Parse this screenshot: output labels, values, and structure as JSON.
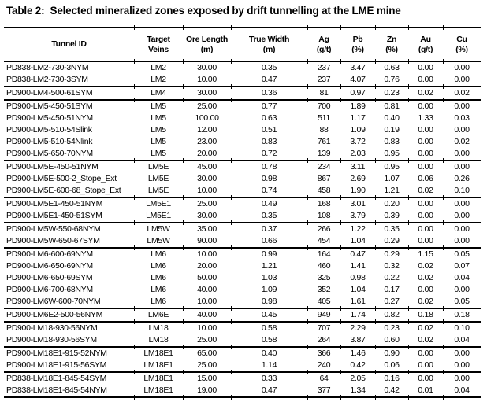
{
  "title": "Table 2:  Selected mineralized zones exposed by drift tunnelling at the LME mine",
  "colors": {
    "background": "#ffffff",
    "text": "#000000",
    "rule": "#000000"
  },
  "table": {
    "columns": [
      {
        "label": "Tunnel ID",
        "sub": ""
      },
      {
        "label": "Target",
        "sub": "Veins"
      },
      {
        "label": "Ore Length",
        "sub": "(m)"
      },
      {
        "label": "True Width",
        "sub": "(m)"
      },
      {
        "label": "Ag",
        "sub": "(g/t)"
      },
      {
        "label": "Pb",
        "sub": "(%)"
      },
      {
        "label": "Zn",
        "sub": "(%)"
      },
      {
        "label": "Au",
        "sub": "(g/t)"
      },
      {
        "label": "Cu",
        "sub": "(%)"
      }
    ],
    "groups": [
      {
        "rows": [
          [
            "PD838-LM2-730-3NYM",
            "LM2",
            "30.00",
            "0.35",
            "237",
            "3.47",
            "0.63",
            "0.00",
            "0.00"
          ],
          [
            "PD838-LM2-730-3SYM",
            "LM2",
            "10.00",
            "0.47",
            "237",
            "4.07",
            "0.76",
            "0.00",
            "0.00"
          ]
        ]
      },
      {
        "rows": [
          [
            "PD900-LM4-500-61SYM",
            "LM4",
            "30.00",
            "0.36",
            "81",
            "0.97",
            "0.23",
            "0.02",
            "0.02"
          ]
        ]
      },
      {
        "rows": [
          [
            "PD900-LM5-450-51SYM",
            "LM5",
            "25.00",
            "0.77",
            "700",
            "1.89",
            "0.81",
            "0.00",
            "0.00"
          ],
          [
            "PD900-LM5-450-51NYM",
            "LM5",
            "100.00",
            "0.63",
            "511",
            "1.17",
            "0.40",
            "1.33",
            "0.03"
          ],
          [
            "PD900-LM5-510-54Slink",
            "LM5",
            "12.00",
            "0.51",
            "88",
            "1.09",
            "0.19",
            "0.00",
            "0.00"
          ],
          [
            "PD900-LM5-510-54Nlink",
            "LM5",
            "23.00",
            "0.83",
            "761",
            "3.72",
            "0.83",
            "0.00",
            "0.02"
          ],
          [
            "PD900-LM5-650-70NYM",
            "LM5",
            "20.00",
            "0.72",
            "139",
            "2.03",
            "0.95",
            "0.00",
            "0.00"
          ]
        ]
      },
      {
        "rows": [
          [
            "PD900-LM5E-450-51NYM",
            "LM5E",
            "45.00",
            "0.78",
            "234",
            "3.11",
            "0.95",
            "0.00",
            "0.00"
          ],
          [
            "PD900-LM5E-500-2_Stope_Ext",
            "LM5E",
            "30.00",
            "0.98",
            "867",
            "2.69",
            "1.07",
            "0.06",
            "0.26"
          ],
          [
            "PD900-LM5E-600-68_Stope_Ext",
            "LM5E",
            "10.00",
            "0.74",
            "458",
            "1.90",
            "1.21",
            "0.02",
            "0.10"
          ]
        ]
      },
      {
        "rows": [
          [
            "PD900-LM5E1-450-51NYM",
            "LM5E1",
            "25.00",
            "0.49",
            "168",
            "3.01",
            "0.20",
            "0.00",
            "0.00"
          ],
          [
            "PD900-LM5E1-450-51SYM",
            "LM5E1",
            "30.00",
            "0.35",
            "108",
            "3.79",
            "0.39",
            "0.00",
            "0.00"
          ]
        ]
      },
      {
        "rows": [
          [
            "PD900-LM5W-550-68NYM",
            "LM5W",
            "35.00",
            "0.37",
            "266",
            "1.22",
            "0.35",
            "0.00",
            "0.00"
          ],
          [
            "PD900-LM5W-650-67SYM",
            "LM5W",
            "90.00",
            "0.66",
            "454",
            "1.04",
            "0.29",
            "0.00",
            "0.00"
          ]
        ]
      },
      {
        "rows": [
          [
            "PD900-LM6-600-69NYM",
            "LM6",
            "10.00",
            "0.99",
            "164",
            "0.47",
            "0.29",
            "1.15",
            "0.05"
          ],
          [
            "PD900-LM6-650-69NYM",
            "LM6",
            "20.00",
            "1.21",
            "460",
            "1.41",
            "0.32",
            "0.02",
            "0.07"
          ],
          [
            "PD900-LM6-650-69SYM",
            "LM6",
            "50.00",
            "1.03",
            "325",
            "0.98",
            "0.22",
            "0.02",
            "0.04"
          ],
          [
            "PD900-LM6-700-68NYM",
            "LM6",
            "40.00",
            "1.09",
            "352",
            "1.04",
            "0.17",
            "0.00",
            "0.00"
          ],
          [
            "PD900-LM6W-600-70NYM",
            "LM6",
            "10.00",
            "0.98",
            "405",
            "1.61",
            "0.27",
            "0.02",
            "0.05"
          ]
        ]
      },
      {
        "rows": [
          [
            "PD900-LM6E2-500-56NYM",
            "LM6E",
            "40.00",
            "0.45",
            "949",
            "1.74",
            "0.82",
            "0.18",
            "0.18"
          ]
        ]
      },
      {
        "rows": [
          [
            "PD900-LM18-930-56NYM",
            "LM18",
            "10.00",
            "0.58",
            "707",
            "2.29",
            "0.23",
            "0.02",
            "0.10"
          ],
          [
            "PD900-LM18-930-56SYM",
            "LM18",
            "25.00",
            "0.58",
            "264",
            "3.87",
            "0.60",
            "0.02",
            "0.04"
          ]
        ]
      },
      {
        "rows": [
          [
            "PD900-LM18E1-915-52NYM",
            "LM18E1",
            "65.00",
            "0.40",
            "366",
            "1.46",
            "0.90",
            "0.00",
            "0.00"
          ],
          [
            "PD900-LM18E1-915-56SYM",
            "LM18E1",
            "25.00",
            "1.14",
            "240",
            "0.42",
            "0.06",
            "0.00",
            "0.00"
          ]
        ]
      },
      {
        "rows": [
          [
            "PD838-LM18E1-845-54SYM",
            "LM18E1",
            "15.00",
            "0.33",
            "64",
            "2.05",
            "0.16",
            "0.00",
            "0.00"
          ],
          [
            "PD838-LM18E1-845-54NYM",
            "LM18E1",
            "19.00",
            "0.47",
            "377",
            "1.34",
            "0.42",
            "0.01",
            "0.04"
          ]
        ]
      }
    ]
  }
}
